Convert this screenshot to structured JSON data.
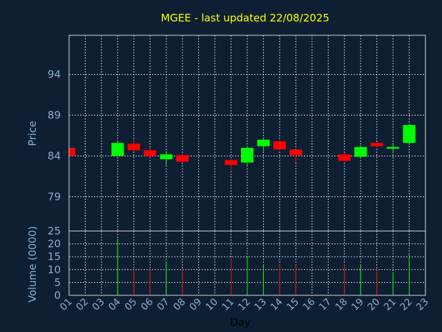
{
  "chart_data": {
    "type": "candlestick",
    "title": "MGEE - last updated 22/08/2025",
    "xlabel": "Day",
    "price_panel": {
      "ylabel": "Price",
      "ylim": [
        74.8,
        98.8
      ],
      "yticks": [
        79,
        84,
        89,
        94
      ],
      "grid": true
    },
    "volume_panel": {
      "ylabel": "Volume (0000)",
      "ylim": [
        0,
        25
      ],
      "yticks": [
        0,
        5,
        10,
        15,
        20,
        25
      ],
      "grid": true
    },
    "x_ticks": [
      "01",
      "02",
      "03",
      "04",
      "05",
      "06",
      "07",
      "08",
      "09",
      "10",
      "11",
      "12",
      "13",
      "14",
      "15",
      "16",
      "17",
      "18",
      "19",
      "20",
      "21",
      "22",
      "23"
    ],
    "colors": {
      "up": "#00ff00",
      "down": "#ff0000",
      "background": "#0f1f33"
    },
    "candles": [
      {
        "day": "01",
        "open": 85.0,
        "high": 85.0,
        "low": 84.0,
        "close": 84.0,
        "volume": 0
      },
      {
        "day": "04",
        "open": 84.0,
        "high": 85.8,
        "low": 84.0,
        "close": 85.6,
        "volume": 22
      },
      {
        "day": "05",
        "open": 85.5,
        "high": 86.0,
        "low": 84.5,
        "close": 84.7,
        "volume": 10
      },
      {
        "day": "06",
        "open": 84.7,
        "high": 85.0,
        "low": 83.8,
        "close": 84.0,
        "volume": 10
      },
      {
        "day": "07",
        "open": 83.6,
        "high": 84.6,
        "low": 82.9,
        "close": 84.2,
        "volume": 13
      },
      {
        "day": "08",
        "open": 84.1,
        "high": 84.2,
        "low": 83.2,
        "close": 83.3,
        "volume": 10
      },
      {
        "day": "11",
        "open": 83.5,
        "high": 83.6,
        "low": 82.3,
        "close": 82.9,
        "volume": 14
      },
      {
        "day": "12",
        "open": 83.2,
        "high": 85.2,
        "low": 82.9,
        "close": 85.0,
        "volume": 15
      },
      {
        "day": "13",
        "open": 85.2,
        "high": 86.2,
        "low": 84.6,
        "close": 86.0,
        "volume": 12
      },
      {
        "day": "14",
        "open": 85.8,
        "high": 85.9,
        "low": 84.7,
        "close": 84.8,
        "volume": 12
      },
      {
        "day": "15",
        "open": 84.8,
        "high": 84.8,
        "low": 83.2,
        "close": 84.1,
        "volume": 12
      },
      {
        "day": "18",
        "open": 84.2,
        "high": 84.4,
        "low": 83.3,
        "close": 83.4,
        "volume": 12
      },
      {
        "day": "19",
        "open": 83.9,
        "high": 85.3,
        "low": 83.8,
        "close": 85.1,
        "volume": 12
      },
      {
        "day": "20",
        "open": 85.6,
        "high": 85.7,
        "low": 85.1,
        "close": 85.2,
        "volume": 10
      },
      {
        "day": "21",
        "open": 84.9,
        "high": 85.6,
        "low": 84.3,
        "close": 85.1,
        "volume": 9
      },
      {
        "day": "22",
        "open": 85.6,
        "high": 87.9,
        "low": 85.6,
        "close": 87.8,
        "volume": 16
      }
    ]
  }
}
